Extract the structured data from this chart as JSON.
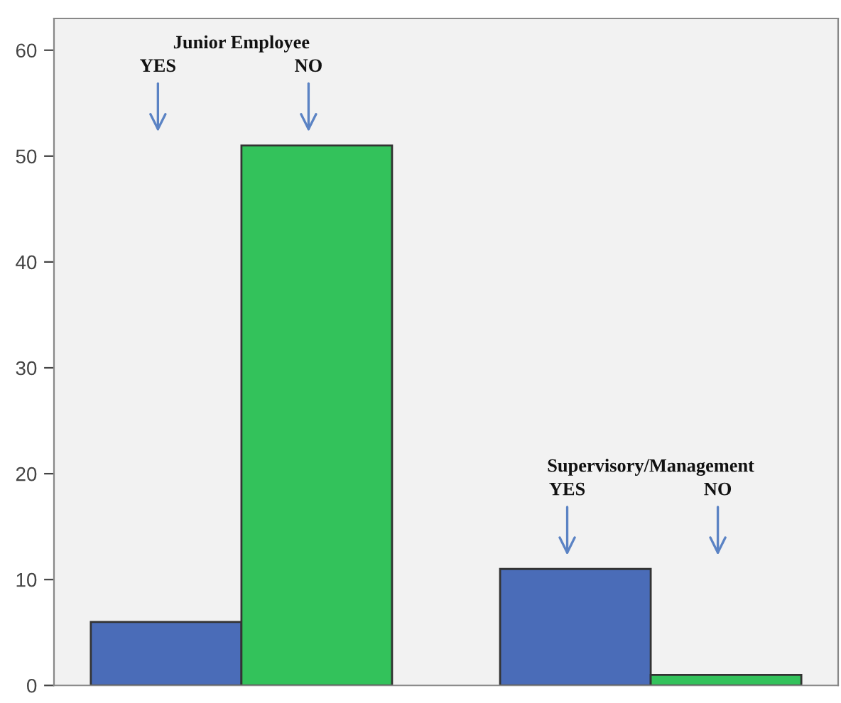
{
  "chart_data": {
    "type": "bar",
    "categories": [
      null,
      null
    ],
    "series": [
      {
        "color": "#4a6cb8",
        "values": [
          6,
          11
        ]
      },
      {
        "color": "#33c25b",
        "values": [
          51,
          1
        ]
      }
    ],
    "ylim": [
      0,
      63
    ],
    "yticks": [
      0,
      10,
      20,
      30,
      40,
      50,
      60
    ],
    "grid": false,
    "legend": false,
    "annotations": [
      "Junior Employee",
      "YES",
      "NO",
      "Supervisory/Management",
      "YES",
      "NO"
    ]
  }
}
